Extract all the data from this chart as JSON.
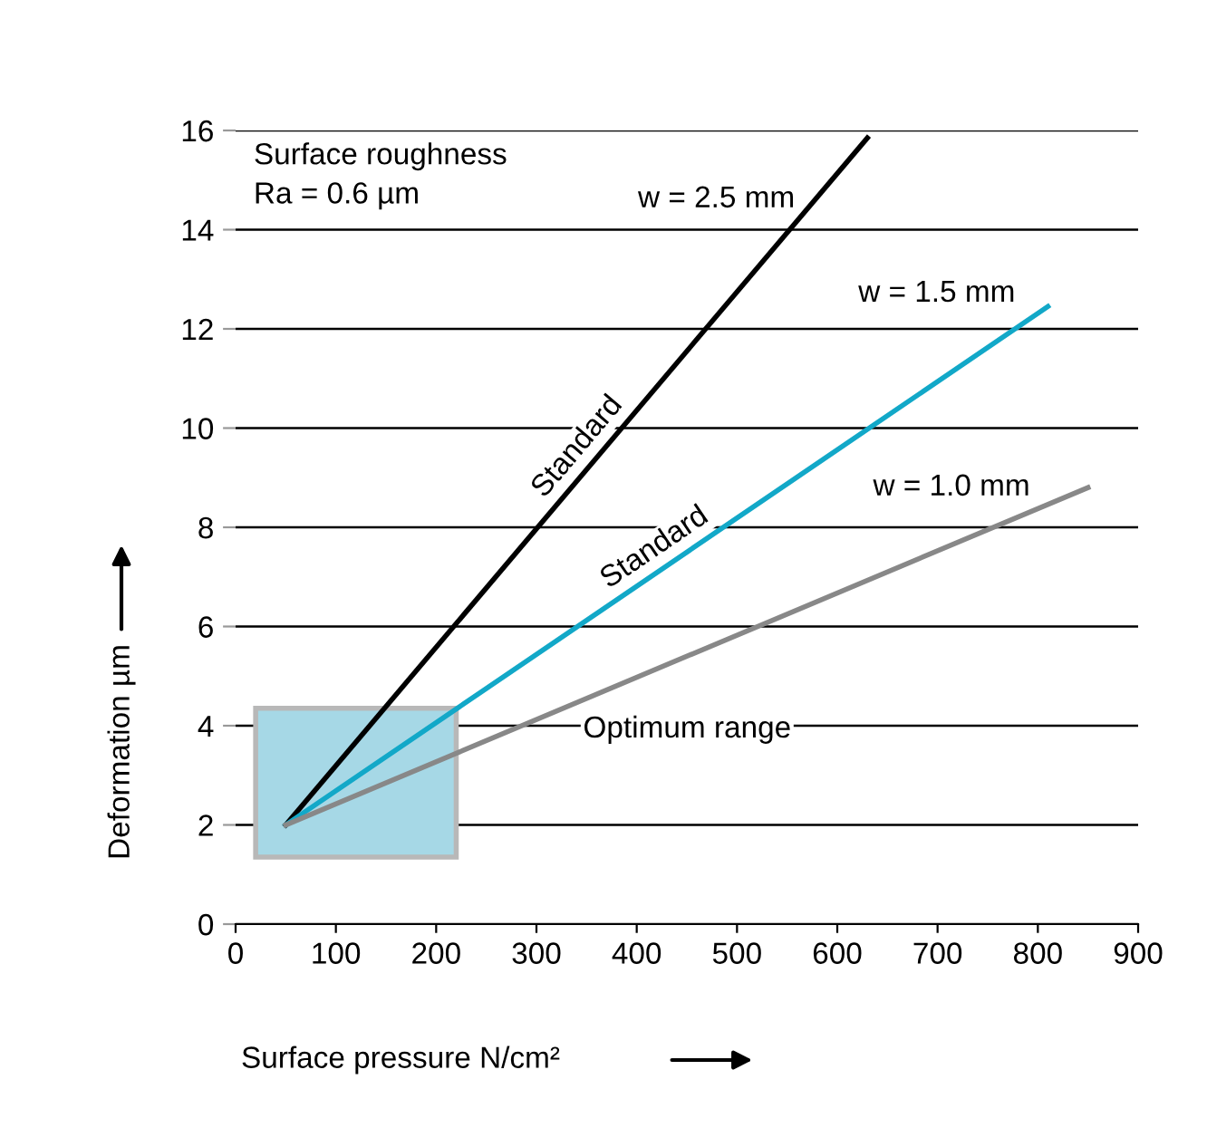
{
  "chart_data": {
    "type": "line",
    "xlabel": "Surface pressure N/cm²",
    "ylabel": "Deformation µm",
    "xlim": [
      0,
      900
    ],
    "xticks": [
      0,
      100,
      200,
      300,
      400,
      500,
      600,
      700,
      800,
      900
    ],
    "ylim": [
      0,
      16
    ],
    "yticks": [
      0,
      2,
      4,
      6,
      8,
      10,
      12,
      14,
      16
    ],
    "grid": "y",
    "marker": "none",
    "line_style": "solid",
    "series": [
      {
        "type": "bar",
        "x": [
          120
        ],
        "base": [
          1.35
        ],
        "values": [
          3.0
        ],
        "color": "#a6d8e6"
      },
      {
        "name": "w = 2.5 mm",
        "x": [
          50,
          630
        ],
        "values": [
          2,
          15.85
        ],
        "color": "#000000"
      },
      {
        "name": "w = 1.5 mm",
        "x": [
          50,
          810
        ],
        "values": [
          2,
          12.45
        ],
        "color": "#12a8c8"
      },
      {
        "name": "w = 1.0 mm",
        "x": [
          50,
          850
        ],
        "values": [
          2,
          8.8
        ],
        "color": "#888888"
      }
    ],
    "annotations": [
      "Surface roughness\nRa = 0.6 µm",
      "Standard",
      "Standard",
      "Optimum range"
    ]
  }
}
